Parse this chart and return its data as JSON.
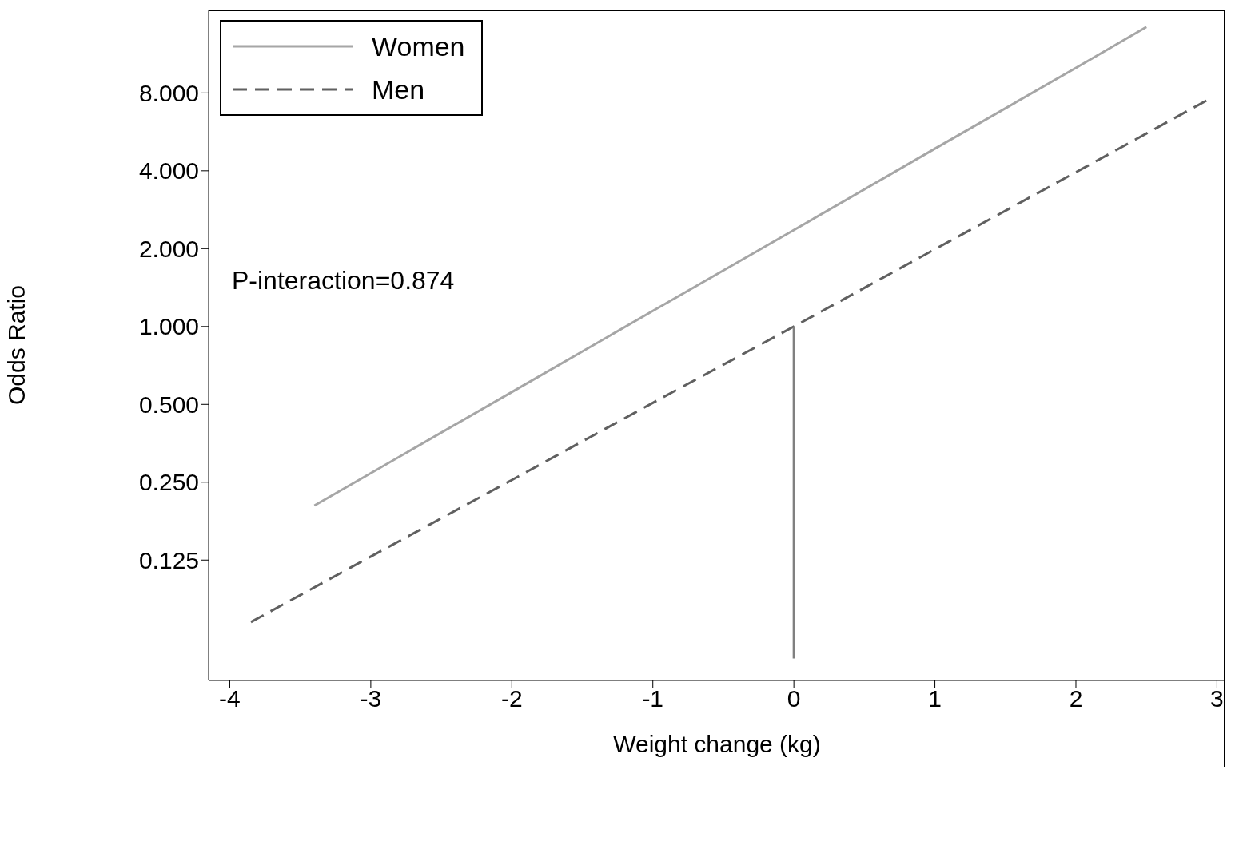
{
  "chart_data": {
    "type": "line",
    "xlabel": "Weight change (kg)",
    "ylabel": "Odds Ratio",
    "log": "y",
    "xlim": [
      -4.15,
      3.06
    ],
    "xticks": [
      -4,
      -3,
      -2,
      -1,
      0,
      1,
      2,
      3
    ],
    "ylim": [
      0.0428,
      16.8
    ],
    "yticks": [
      {
        "value": 0.125,
        "label": "0.125"
      },
      {
        "value": 0.25,
        "label": "0.250"
      },
      {
        "value": 0.5,
        "label": "0.500"
      },
      {
        "value": 1,
        "label": "1.000"
      },
      {
        "value": 2,
        "label": "2.000"
      },
      {
        "value": 4,
        "label": "4.000"
      },
      {
        "value": 8,
        "label": "8.000"
      }
    ],
    "grid": false,
    "legend": "top left",
    "marker": "none",
    "annotations": [
      "P-interaction=0.874"
    ],
    "series": [
      {
        "name": "Women",
        "color": "#a6a6a6",
        "line_style": "solid",
        "x": [
          -3.4,
          -2,
          -1,
          0,
          1,
          2,
          2.5
        ],
        "values": [
          0.203,
          0.558,
          1.149,
          2.36,
          4.87,
          10.0,
          14.4
        ]
      },
      {
        "name": "Men",
        "color": "#606060",
        "line_style": "dashed",
        "x": [
          -3.85,
          -3,
          -2,
          -1,
          0,
          1,
          2,
          2.95
        ],
        "values": [
          0.072,
          0.129,
          0.255,
          0.507,
          1,
          1.99,
          3.95,
          7.6
        ]
      },
      {
        "color": "#808080",
        "line_style": "solid",
        "x": [
          0,
          0
        ],
        "values": [
          1,
          0.052
        ]
      }
    ]
  }
}
